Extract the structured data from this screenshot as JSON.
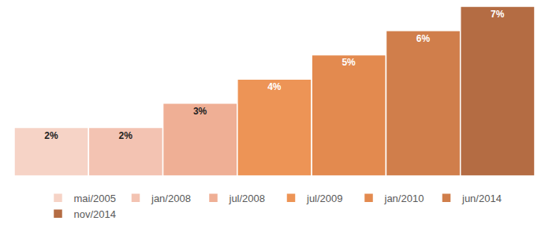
{
  "chart_data": {
    "type": "bar",
    "categories": [
      "mai/2005",
      "jan/2008",
      "jul/2008",
      "jul/2009",
      "jan/2010",
      "jun/2014",
      "nov/2014"
    ],
    "values": [
      2,
      2,
      3,
      4,
      5,
      6,
      7
    ],
    "value_labels": [
      "2%",
      "2%",
      "3%",
      "4%",
      "5%",
      "6%",
      "7%"
    ],
    "colors": [
      "#F6D3C6",
      "#F3C3B2",
      "#EFAF95",
      "#ED9456",
      "#E38A4F",
      "#D07E4B",
      "#B46C43"
    ],
    "ylim": [
      0,
      7
    ],
    "grid": false,
    "data_labels": true,
    "tick_labels": false,
    "legend": "bottom"
  }
}
